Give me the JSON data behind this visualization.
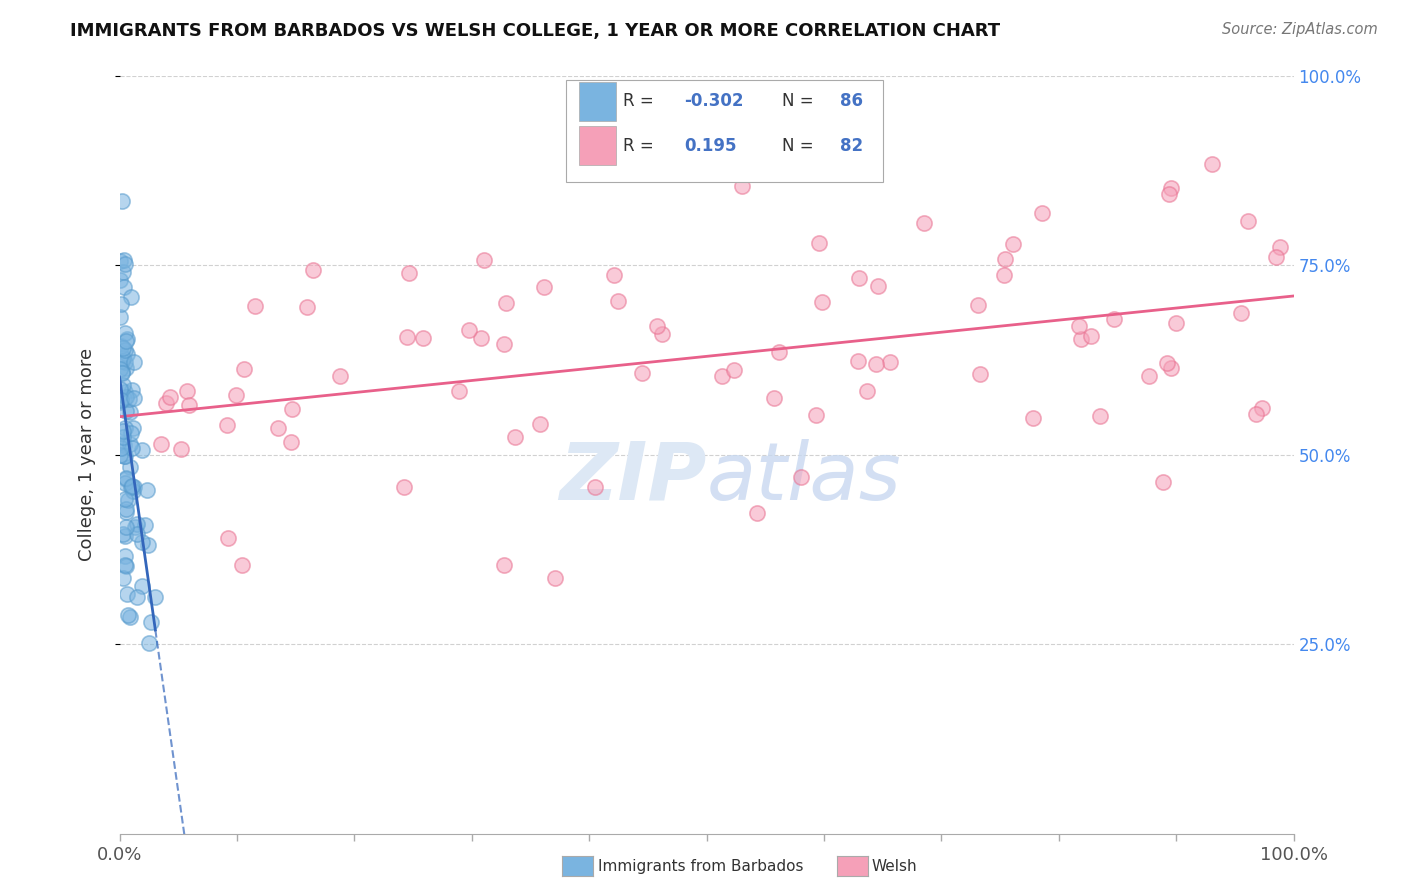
{
  "title": "IMMIGRANTS FROM BARBADOS VS WELSH COLLEGE, 1 YEAR OR MORE CORRELATION CHART",
  "source": "Source: ZipAtlas.com",
  "ylabel": "College, 1 year or more",
  "r1": -0.302,
  "n1": 86,
  "r2": 0.195,
  "n2": 82,
  "color_blue": "#7ab4e0",
  "color_blue_edge": "#5599cc",
  "color_pink": "#f5a0b8",
  "color_pink_edge": "#e87090",
  "color_blue_text": "#4472c4",
  "trendline1_color": "#3366bb",
  "trendline2_color": "#e8608a",
  "background_color": "#ffffff",
  "grid_color": "#cccccc",
  "watermark": "ZIPAtlas",
  "watermark_color": "#dde8f5"
}
